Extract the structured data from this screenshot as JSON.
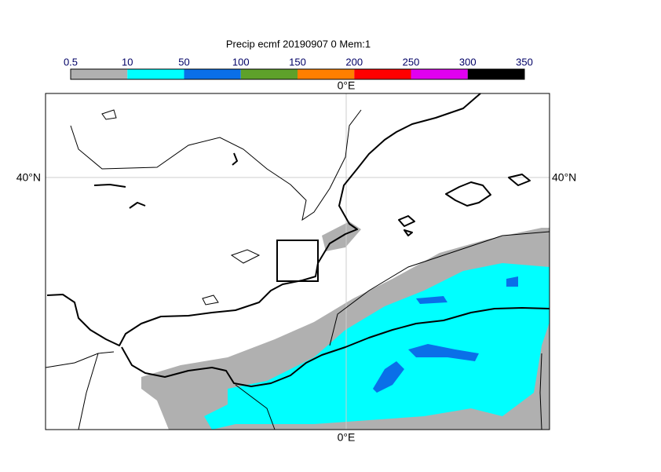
{
  "title": "Precip ecmf 20190907 0 Mem:1",
  "colorbar": {
    "bounds": [
      0.5,
      10,
      50,
      100,
      150,
      200,
      250,
      300,
      350
    ],
    "colors": [
      "#b0b0b0",
      "#00ffff",
      "#0a6fe8",
      "#5ea12a",
      "#ff7f00",
      "#ff0000",
      "#e100f0",
      "#000000"
    ]
  },
  "labels": {
    "lon_top": "0°E",
    "lon_bottom": "0°E",
    "lat_left": "40°N",
    "lat_right": "40°N"
  }
}
